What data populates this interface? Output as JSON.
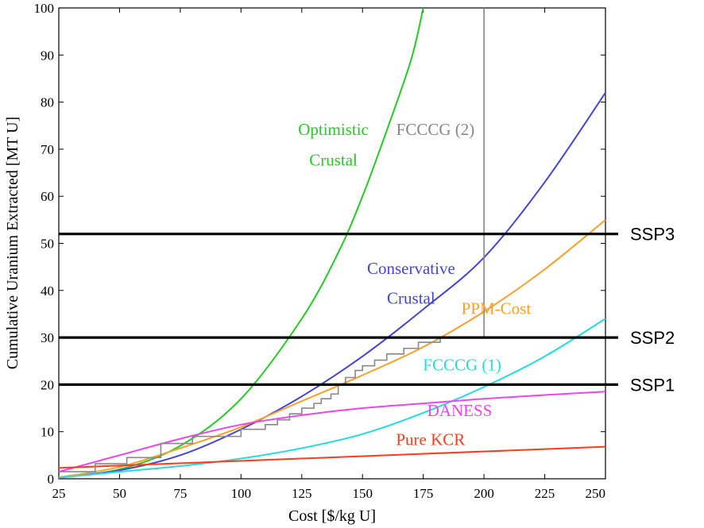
{
  "chart_data": {
    "type": "line",
    "xlabel": "Cost [$/kg U]",
    "ylabel": "Cumulative Uranium Extracted [MT U]",
    "xlim": [
      25,
      250
    ],
    "ylim": [
      0,
      100
    ],
    "x_ticks": [
      "25",
      "50",
      "75",
      "100",
      "125",
      "150",
      "175",
      "200",
      "225",
      "250"
    ],
    "y_ticks": [
      "0",
      "10",
      "20",
      "30",
      "40",
      "50",
      "60",
      "70",
      "80",
      "90",
      "100"
    ],
    "grid": false,
    "series": [
      {
        "name": "Optimistic Crustal",
        "label_lines": [
          "Optimistic",
          "Crustal"
        ],
        "color": "#22cc22",
        "x": [
          25,
          50,
          75,
          100,
          125,
          140,
          150,
          160,
          170,
          175
        ],
        "y": [
          0.3,
          2,
          7,
          17,
          34,
          48,
          60,
          74,
          89,
          100
        ]
      },
      {
        "name": "Conservative Crustal",
        "label_lines": [
          "Conservative",
          "Crustal"
        ],
        "color": "#4444dd",
        "x": [
          25,
          50,
          75,
          100,
          125,
          150,
          175,
          200,
          225,
          250
        ],
        "y": [
          0.3,
          1.8,
          5,
          10.5,
          17.5,
          26,
          36,
          47,
          63,
          82
        ]
      },
      {
        "name": "PPM-Cost",
        "label_lines": [
          "PPM-Cost"
        ],
        "color": "#ff9f2a",
        "x": [
          25,
          50,
          75,
          100,
          125,
          150,
          175,
          200,
          225,
          250
        ],
        "y": [
          0.3,
          2.5,
          6.5,
          11,
          16.5,
          22,
          28,
          35.5,
          44.5,
          55
        ]
      },
      {
        "name": "FCCCG (1)",
        "label_lines": [
          "FCCCG (1)"
        ],
        "color": "#22dddd",
        "x": [
          25,
          50,
          75,
          100,
          125,
          150,
          175,
          200,
          225,
          250
        ],
        "y": [
          0.2,
          1.5,
          2.7,
          4.3,
          6.5,
          9.5,
          14,
          19.5,
          26,
          34
        ]
      },
      {
        "name": "DANESS",
        "label_lines": [
          "DANESS"
        ],
        "color": "#ee44ee",
        "x": [
          25,
          50,
          75,
          100,
          125,
          150,
          175,
          200,
          225,
          250
        ],
        "y": [
          1.5,
          5,
          8.5,
          11.5,
          13.5,
          15,
          16,
          17,
          17.8,
          18.5
        ]
      },
      {
        "name": "Pure KCR",
        "label_lines": [
          "Pure KCR"
        ],
        "color": "#ff3b1a",
        "x": [
          25,
          250
        ],
        "y": [
          2.3,
          6.8
        ]
      },
      {
        "name": "FCCCG (2)",
        "label_lines": [
          "FCCCG (2)"
        ],
        "color": "#888888",
        "step": true,
        "x": [
          25,
          30,
          40,
          53,
          67,
          80,
          100,
          110,
          115,
          120,
          125,
          130,
          133,
          137,
          140,
          143,
          147,
          150,
          155,
          160,
          167,
          173,
          182,
          200,
          200
        ],
        "y": [
          1.5,
          1.5,
          3.2,
          4.5,
          7.5,
          9,
          10.5,
          11.5,
          12.5,
          13.8,
          15,
          16,
          17,
          18,
          20,
          21.5,
          23,
          24,
          25.2,
          26.5,
          27.7,
          29,
          30,
          30,
          100
        ]
      }
    ],
    "horizontal_lines": [
      {
        "label": "SSP3",
        "y": 52
      },
      {
        "label": "SSP2",
        "y": 30
      },
      {
        "label": "SSP1",
        "y": 20
      }
    ]
  }
}
